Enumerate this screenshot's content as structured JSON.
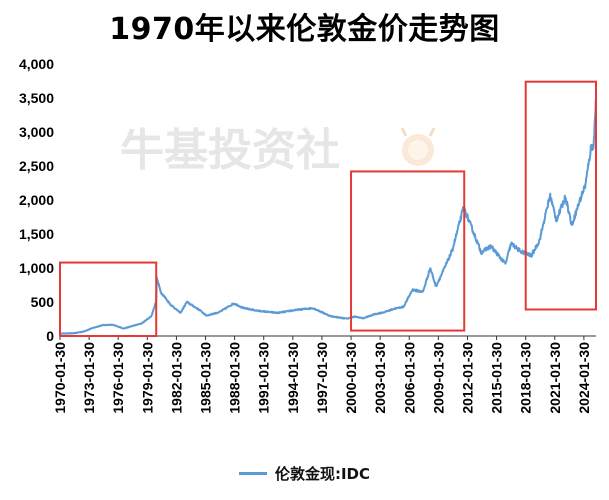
{
  "chart_data": {
    "type": "line",
    "title": "1970年以来伦敦金价走势图",
    "xlabel": "",
    "ylabel": "",
    "ylim": [
      0,
      4000
    ],
    "grid": false,
    "legend_position": "bottom",
    "watermark": "牛基投资社",
    "y_ticks": [
      "0",
      "500",
      "1,000",
      "1,500",
      "2,000",
      "2,500",
      "3,000",
      "3,500",
      "4,000"
    ],
    "x_ticks": [
      "1970-01-30",
      "1973-01-30",
      "1976-01-30",
      "1979-01-30",
      "1982-01-30",
      "1985-01-30",
      "1988-01-30",
      "1991-01-30",
      "1994-01-30",
      "1997-01-30",
      "2000-01-30",
      "2003-01-30",
      "2006-01-30",
      "2009-01-30",
      "2012-01-30",
      "2015-01-30",
      "2018-01-30",
      "2021-01-30",
      "2024-01-30"
    ],
    "x_range": [
      "1970-01-30",
      "2025-04-30"
    ],
    "highlight_boxes": [
      {
        "x_from": "1970-01-30",
        "x_to": "1979-12-31",
        "y_from": 0,
        "y_to": 1080
      },
      {
        "x_from": "2000-01-30",
        "x_to": "2011-09-30",
        "y_from": 80,
        "y_to": 2420
      },
      {
        "x_from": "2018-01-30",
        "x_to": "2025-04-30",
        "y_from": 390,
        "y_to": 3740
      }
    ],
    "highlight_color": "#e53935",
    "series": [
      {
        "name": "伦敦金现:IDC",
        "color": "#5b9bd5",
        "x": [
          "1970-01-30",
          "1971-06-30",
          "1972-06-30",
          "1973-06-30",
          "1974-06-30",
          "1975-06-30",
          "1976-08-30",
          "1977-06-30",
          "1978-06-30",
          "1979-06-30",
          "1979-12-31",
          "1980-01-21",
          "1980-06-30",
          "1981-06-30",
          "1982-06-30",
          "1983-02-28",
          "1984-06-30",
          "1985-02-28",
          "1986-06-30",
          "1987-12-31",
          "1988-12-31",
          "1990-06-30",
          "1992-06-30",
          "1994-06-30",
          "1996-02-28",
          "1997-12-31",
          "1999-08-30",
          "2000-06-30",
          "2001-04-30",
          "2002-06-30",
          "2003-06-30",
          "2004-06-30",
          "2005-06-30",
          "2006-05-30",
          "2007-06-30",
          "2008-03-30",
          "2008-10-30",
          "2009-06-30",
          "2010-06-30",
          "2011-09-06",
          "2012-06-30",
          "2013-06-30",
          "2014-06-30",
          "2015-12-31",
          "2016-07-30",
          "2017-06-30",
          "2018-08-30",
          "2019-06-30",
          "2020-08-06",
          "2021-03-30",
          "2022-03-08",
          "2022-10-30",
          "2023-06-30",
          "2024-03-30",
          "2024-10-30",
          "2025-01-30",
          "2025-04-22"
        ],
        "values": [
          35,
          40,
          65,
          120,
          160,
          165,
          110,
          145,
          185,
          290,
          512,
          850,
          640,
          460,
          340,
          500,
          380,
          300,
          350,
          480,
          410,
          370,
          340,
          385,
          410,
          290,
          255,
          285,
          260,
          320,
          350,
          400,
          430,
          680,
          650,
          1000,
          730,
          930,
          1250,
          1890,
          1600,
          1230,
          1320,
          1060,
          1360,
          1250,
          1180,
          1400,
          2070,
          1700,
          2050,
          1630,
          1920,
          2230,
          2780,
          2800,
          3420
        ]
      }
    ]
  }
}
